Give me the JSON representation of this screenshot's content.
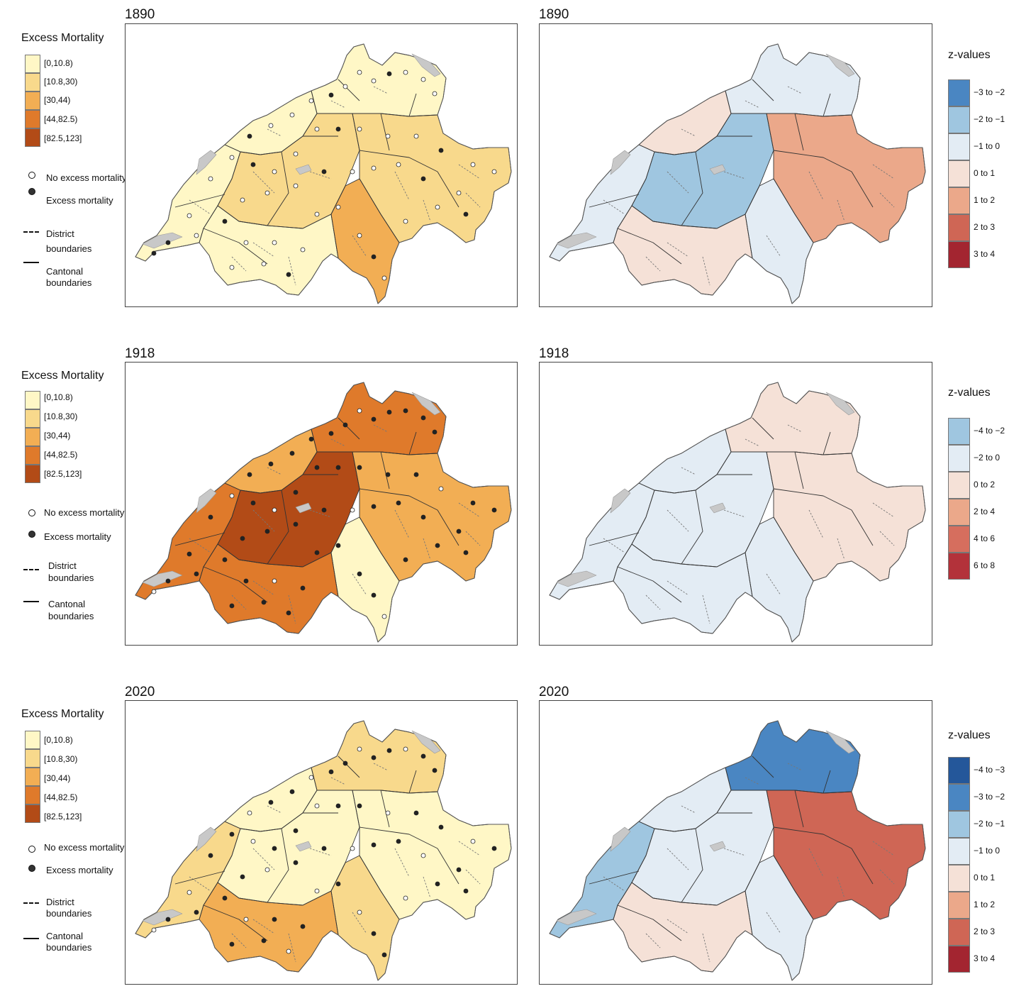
{
  "left_legend": {
    "title": "Excess Mortality",
    "classes": [
      {
        "label": "[0,10.8)",
        "color": "#fff7c6"
      },
      {
        "label": "[10.8,30)",
        "color": "#f8d98c"
      },
      {
        "label": "[30,44)",
        "color": "#f2ae54"
      },
      {
        "label": "[44,82.5)",
        "color": "#df7a2b"
      },
      {
        "label": "[82.5,123]",
        "color": "#b24b17"
      }
    ],
    "no_excess": "No excess mortality",
    "excess": "Excess mortality",
    "district": [
      "District",
      "boundaries"
    ],
    "cantonal": [
      "Cantonal",
      "boundaries"
    ]
  },
  "rows": [
    {
      "year": "1890",
      "excess_palette": [
        "#fff7c6",
        "#fff7c6",
        "#fff7c6",
        "#f8d98c",
        "#fff7c6",
        "#f8d98c",
        "#f2ae54"
      ],
      "z_legend": {
        "title": "z-values",
        "classes": [
          {
            "label": "−3 to −2",
            "color": "#4a86c2"
          },
          {
            "label": "−2 to −1",
            "color": "#9fc6e0"
          },
          {
            "label": "−1 to 0",
            "color": "#e3ecf4"
          },
          {
            "label": "0 to 1",
            "color": "#f5e1d7"
          },
          {
            "label": "1 to 2",
            "color": "#eba88a"
          },
          {
            "label": "2 to 3",
            "color": "#cf6655"
          },
          {
            "label": "3 to 4",
            "color": "#a32530"
          }
        ]
      },
      "z_palette": [
        "#e3ecf4",
        "#f5e1d7",
        "#e3ecf4",
        "#9fc6e0",
        "#f5e1d7",
        "#eba88a",
        "#e3ecf4"
      ]
    },
    {
      "year": "1918",
      "excess_palette": [
        "#df7a2b",
        "#f2ae54",
        "#df7a2b",
        "#b24b17",
        "#df7a2b",
        "#f2ae54",
        "#fff7c6"
      ],
      "z_legend": {
        "title": "z-values",
        "classes": [
          {
            "label": "−4 to −2",
            "color": "#9fc6e0"
          },
          {
            "label": "−2 to 0",
            "color": "#e3ecf4"
          },
          {
            "label": "0 to 2",
            "color": "#f5e1d7"
          },
          {
            "label": "2 to 4",
            "color": "#eba88a"
          },
          {
            "label": "4 to 6",
            "color": "#d66e5e"
          },
          {
            "label": "6 to 8",
            "color": "#b3323a"
          }
        ]
      },
      "z_palette": [
        "#e3ecf4",
        "#e3ecf4",
        "#f5e1d7",
        "#e3ecf4",
        "#e3ecf4",
        "#f5e1d7",
        "#e3ecf4"
      ]
    },
    {
      "year": "2020",
      "excess_palette": [
        "#f8d98c",
        "#fff7c6",
        "#f8d98c",
        "#fff7c6",
        "#f2ae54",
        "#fff7c6",
        "#f8d98c"
      ],
      "z_legend": {
        "title": "z-values",
        "classes": [
          {
            "label": "−4 to −3",
            "color": "#24579a"
          },
          {
            "label": "−3 to −2",
            "color": "#4a86c2"
          },
          {
            "label": "−2 to −1",
            "color": "#9fc6e0"
          },
          {
            "label": "−1 to 0",
            "color": "#e3ecf4"
          },
          {
            "label": "0 to 1",
            "color": "#f5e1d7"
          },
          {
            "label": "1 to 2",
            "color": "#eba88a"
          },
          {
            "label": "2 to 3",
            "color": "#cf6655"
          },
          {
            "label": "3 to 4",
            "color": "#a32530"
          }
        ]
      },
      "z_palette": [
        "#9fc6e0",
        "#e3ecf4",
        "#4a86c2",
        "#e3ecf4",
        "#f5e1d7",
        "#cf6655",
        "#e3ecf4"
      ]
    }
  ],
  "colors": {
    "lake": "#c8c8c8",
    "boundary": "#333333",
    "district_boundary": "#777777"
  }
}
